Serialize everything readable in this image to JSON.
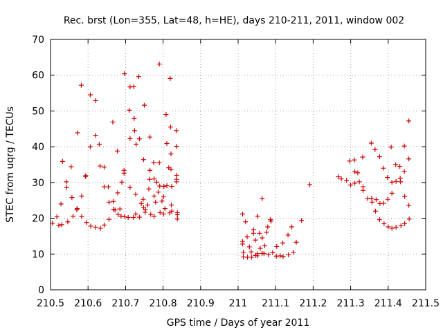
{
  "chart_data": {
    "type": "scatter",
    "title": "Rec. brst (Lon=355, Lat=48, h=HE), days 210-211, 2011, window 002",
    "xlabel": "GPS time / Days of year 2011",
    "ylabel": "STEC from uqrg / TECUs",
    "xlim": [
      210.5,
      211.5
    ],
    "ylim": [
      0,
      70
    ],
    "x_ticks": [
      210.5,
      210.6,
      210.7,
      210.8,
      210.9,
      211,
      211.1,
      211.2,
      211.3,
      211.4,
      211.5
    ],
    "x_tick_labels": [
      "210.5",
      "210.6",
      "210.7",
      "210.8",
      "210.9",
      "211",
      "211.1",
      "211.2",
      "211.3",
      "211.4",
      "211.5"
    ],
    "y_ticks": [
      0,
      10,
      20,
      30,
      40,
      50,
      60,
      70
    ],
    "y_tick_labels": [
      "0",
      "10",
      "20",
      "30",
      "40",
      "50",
      "60",
      "70"
    ],
    "grid": true,
    "marker": "plus",
    "color": "#cc0000",
    "points": [
      [
        210.505,
        18.6
      ],
      [
        210.517,
        20.4
      ],
      [
        210.522,
        18.0
      ],
      [
        210.53,
        18.2
      ],
      [
        210.528,
        24.0
      ],
      [
        210.532,
        35.9
      ],
      [
        210.542,
        30.2
      ],
      [
        210.543,
        28.6
      ],
      [
        210.546,
        19.0
      ],
      [
        210.555,
        34.4
      ],
      [
        210.557,
        25.8
      ],
      [
        210.56,
        20.6
      ],
      [
        210.57,
        22.4
      ],
      [
        210.571,
        22.7
      ],
      [
        210.572,
        43.9
      ],
      [
        210.582,
        57.2
      ],
      [
        210.583,
        26.2
      ],
      [
        210.583,
        20.5
      ],
      [
        210.593,
        31.7
      ],
      [
        210.594,
        31.9
      ],
      [
        210.596,
        18.8
      ],
      [
        210.606,
        54.5
      ],
      [
        210.606,
        40.0
      ],
      [
        210.607,
        17.8
      ],
      [
        210.62,
        52.9
      ],
      [
        210.62,
        43.2
      ],
      [
        210.62,
        17.5
      ],
      [
        210.63,
        40.7
      ],
      [
        210.632,
        34.6
      ],
      [
        210.633,
        17.2
      ],
      [
        210.643,
        34.3
      ],
      [
        210.643,
        28.8
      ],
      [
        210.643,
        18.1
      ],
      [
        210.654,
        28.8
      ],
      [
        210.656,
        24.5
      ],
      [
        210.656,
        19.7
      ],
      [
        210.666,
        46.9
      ],
      [
        210.667,
        24.7
      ],
      [
        210.668,
        22.5
      ],
      [
        210.672,
        22.3
      ],
      [
        210.678,
        38.8
      ],
      [
        210.68,
        21.1
      ],
      [
        210.679,
        27.1
      ],
      [
        210.685,
        22.6
      ],
      [
        210.688,
        20.6
      ],
      [
        210.69,
        30.1
      ],
      [
        210.696,
        33.4
      ],
      [
        210.696,
        32.6
      ],
      [
        210.697,
        60.4
      ],
      [
        210.697,
        20.5
      ],
      [
        210.707,
        20.2
      ],
      [
        210.71,
        50.2
      ],
      [
        210.712,
        56.7
      ],
      [
        210.712,
        42.3
      ],
      [
        210.712,
        28.6
      ],
      [
        210.721,
        20.2
      ],
      [
        210.722,
        56.8
      ],
      [
        210.723,
        47.9
      ],
      [
        210.724,
        44.5
      ],
      [
        210.727,
        26.7
      ],
      [
        210.727,
        21.2
      ],
      [
        210.728,
        40.7
      ],
      [
        210.735,
        59.6
      ],
      [
        210.737,
        42.2
      ],
      [
        210.737,
        20.3
      ],
      [
        210.742,
        24.1
      ],
      [
        210.747,
        25.3
      ],
      [
        210.748,
        36.4
      ],
      [
        210.748,
        23.0
      ],
      [
        210.75,
        51.6
      ],
      [
        210.752,
        21.7
      ],
      [
        210.753,
        22.4
      ],
      [
        210.759,
        23.7
      ],
      [
        210.762,
        28.2
      ],
      [
        210.764,
        30.9
      ],
      [
        210.765,
        42.7
      ],
      [
        210.765,
        33.4
      ],
      [
        210.767,
        21.1
      ],
      [
        210.775,
        35.6
      ],
      [
        210.776,
        31.0
      ],
      [
        210.776,
        26.2
      ],
      [
        210.776,
        20.6
      ],
      [
        210.78,
        24.5
      ],
      [
        210.783,
        30.1
      ],
      [
        210.787,
        27.3
      ],
      [
        210.79,
        63.1
      ],
      [
        210.79,
        35.5
      ],
      [
        210.791,
        29.0
      ],
      [
        210.792,
        21.6
      ],
      [
        210.797,
        24.8
      ],
      [
        210.801,
        26.0
      ],
      [
        210.801,
        21.2
      ],
      [
        210.802,
        28.9
      ],
      [
        210.805,
        22.7
      ],
      [
        210.808,
        49.0
      ],
      [
        210.81,
        40.9
      ],
      [
        210.81,
        29.1
      ],
      [
        210.815,
        34.1
      ],
      [
        210.818,
        21.5
      ],
      [
        210.819,
        59.1
      ],
      [
        210.82,
        45.5
      ],
      [
        210.821,
        38.0
      ],
      [
        210.821,
        33.7
      ],
      [
        210.822,
        23.7
      ],
      [
        210.823,
        28.9
      ],
      [
        210.823,
        22.0
      ],
      [
        210.835,
        44.5
      ],
      [
        210.836,
        40.1
      ],
      [
        210.836,
        32.0
      ],
      [
        210.836,
        30.9
      ],
      [
        210.836,
        30.2
      ],
      [
        210.838,
        21.6
      ],
      [
        210.838,
        21.0
      ],
      [
        210.838,
        19.8
      ],
      [
        211.012,
        21.2
      ],
      [
        211.012,
        13.5
      ],
      [
        211.012,
        12.8
      ],
      [
        211.014,
        10.5
      ],
      [
        211.014,
        9.2
      ],
      [
        211.02,
        19.0
      ],
      [
        211.024,
        14.8
      ],
      [
        211.025,
        9.1
      ],
      [
        211.03,
        12.0
      ],
      [
        211.035,
        10.6
      ],
      [
        211.036,
        9.1
      ],
      [
        211.041,
        16.8
      ],
      [
        211.041,
        15.8
      ],
      [
        211.046,
        13.9
      ],
      [
        211.046,
        9.6
      ],
      [
        211.051,
        10.1
      ],
      [
        211.051,
        9.5
      ],
      [
        211.052,
        20.6
      ],
      [
        211.057,
        15.8
      ],
      [
        211.059,
        11.6
      ],
      [
        211.064,
        25.5
      ],
      [
        211.064,
        14.5
      ],
      [
        211.064,
        10.2
      ],
      [
        211.069,
        10.1
      ],
      [
        211.071,
        12.3
      ],
      [
        211.076,
        16.1
      ],
      [
        211.079,
        17.6
      ],
      [
        211.081,
        9.8
      ],
      [
        211.086,
        19.6
      ],
      [
        211.088,
        19.2
      ],
      [
        211.092,
        10.4
      ],
      [
        211.102,
        9.4
      ],
      [
        211.103,
        12.1
      ],
      [
        211.112,
        9.5
      ],
      [
        211.119,
        13.1
      ],
      [
        211.12,
        9.3
      ],
      [
        211.133,
        15.3
      ],
      [
        211.134,
        9.8
      ],
      [
        211.143,
        17.6
      ],
      [
        211.147,
        10.5
      ],
      [
        211.155,
        13.3
      ],
      [
        211.169,
        19.4
      ],
      [
        211.191,
        29.4
      ],
      [
        211.267,
        31.6
      ],
      [
        211.275,
        31.0
      ],
      [
        211.289,
        30.6
      ],
      [
        211.297,
        36.0
      ],
      [
        211.3,
        29.3
      ],
      [
        211.31,
        36.3
      ],
      [
        211.311,
        33.0
      ],
      [
        211.311,
        29.8
      ],
      [
        211.319,
        32.7
      ],
      [
        211.323,
        30.2
      ],
      [
        211.332,
        37.1
      ],
      [
        211.333,
        28.8
      ],
      [
        211.333,
        27.8
      ],
      [
        211.345,
        25.5
      ],
      [
        211.355,
        41.0
      ],
      [
        211.356,
        25.6
      ],
      [
        211.357,
        24.5
      ],
      [
        211.365,
        39.2
      ],
      [
        211.366,
        22.0
      ],
      [
        211.368,
        25.2
      ],
      [
        211.377,
        37.2
      ],
      [
        211.377,
        19.6
      ],
      [
        211.378,
        24.1
      ],
      [
        211.387,
        34.0
      ],
      [
        211.388,
        24.2
      ],
      [
        211.389,
        18.5
      ],
      [
        211.398,
        31.4
      ],
      [
        211.399,
        25.3
      ],
      [
        211.4,
        17.6
      ],
      [
        211.408,
        39.9
      ],
      [
        211.41,
        30.1
      ],
      [
        211.41,
        27.0
      ],
      [
        211.41,
        17.2
      ],
      [
        211.42,
        35.0
      ],
      [
        211.421,
        30.3
      ],
      [
        211.421,
        17.5
      ],
      [
        211.431,
        34.5
      ],
      [
        211.432,
        31.2
      ],
      [
        211.433,
        30.2
      ],
      [
        211.434,
        17.9
      ],
      [
        211.443,
        40.2
      ],
      [
        211.443,
        33.1
      ],
      [
        211.444,
        26.1
      ],
      [
        211.444,
        18.5
      ],
      [
        211.455,
        47.2
      ],
      [
        211.455,
        36.6
      ],
      [
        211.455,
        23.6
      ],
      [
        211.456,
        19.8
      ]
    ]
  }
}
